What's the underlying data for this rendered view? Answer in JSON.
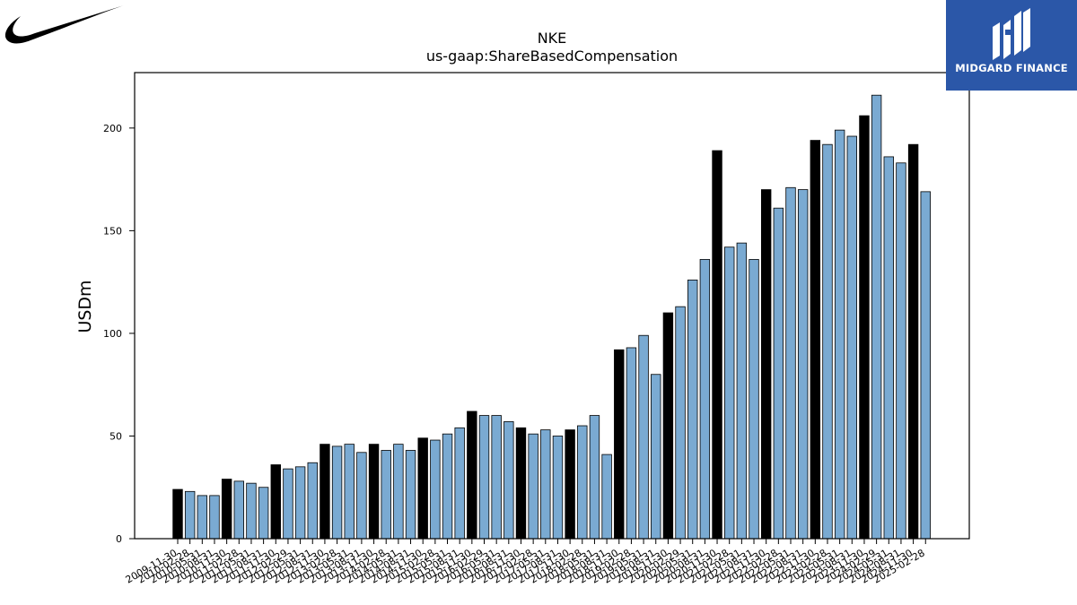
{
  "branding": {
    "company_logo_icon": "nike-swoosh-icon",
    "publisher_logo_icon": "midgard-mark-icon",
    "publisher_name": "MIDGARD FINANCE",
    "publisher_color": "#2b57a8"
  },
  "chart_data": {
    "type": "bar",
    "title": "NKE",
    "subtitle": "us-gaap:ShareBasedCompensation",
    "xlabel": "",
    "ylabel": "USDm",
    "ylim": [
      0,
      227
    ],
    "yticks": [
      0,
      50,
      100,
      150,
      200
    ],
    "grid": false,
    "colors": {
      "annual": "#000000",
      "quarterly": "#7aaad2",
      "edge": "#000000"
    },
    "categories": [
      "2009-11-30",
      "2010-02-28",
      "2010-05-31",
      "2010-08-31",
      "2010-11-30",
      "2011-02-28",
      "2011-05-31",
      "2011-08-31",
      "2011-11-30",
      "2012-02-29",
      "2012-05-31",
      "2012-08-31",
      "2012-11-30",
      "2013-02-28",
      "2013-05-31",
      "2013-08-31",
      "2013-11-30",
      "2014-02-28",
      "2014-05-31",
      "2014-08-31",
      "2014-11-30",
      "2015-02-28",
      "2015-05-31",
      "2015-08-31",
      "2015-11-30",
      "2016-02-29",
      "2016-05-31",
      "2016-08-31",
      "2016-11-30",
      "2017-02-28",
      "2017-05-31",
      "2017-08-31",
      "2017-11-30",
      "2018-02-28",
      "2018-05-31",
      "2018-08-31",
      "2018-11-30",
      "2019-02-28",
      "2019-05-31",
      "2019-08-31",
      "2019-11-30",
      "2020-02-29",
      "2020-05-31",
      "2020-08-31",
      "2020-11-30",
      "2021-02-28",
      "2021-05-31",
      "2021-08-31",
      "2021-11-30",
      "2022-02-28",
      "2022-05-31",
      "2022-08-31",
      "2022-11-30",
      "2023-02-28",
      "2023-05-31",
      "2023-08-31",
      "2023-11-30",
      "2024-02-29",
      "2024-05-31",
      "2024-08-31",
      "2024-11-30",
      "2025-02-28"
    ],
    "values": [
      24,
      23,
      21,
      21,
      29,
      28,
      27,
      25,
      36,
      34,
      35,
      37,
      46,
      45,
      46,
      42,
      46,
      43,
      46,
      43,
      49,
      48,
      51,
      54,
      62,
      60,
      60,
      57,
      54,
      51,
      53,
      50,
      53,
      55,
      60,
      41,
      92,
      93,
      99,
      80,
      110,
      113,
      126,
      136,
      189,
      142,
      144,
      136,
      170,
      161,
      171,
      170,
      194,
      192,
      199,
      196,
      206,
      216,
      186,
      183,
      192,
      169
    ],
    "annual_flags": [
      1,
      0,
      0,
      0,
      1,
      0,
      0,
      0,
      1,
      0,
      0,
      0,
      1,
      0,
      0,
      0,
      1,
      0,
      0,
      0,
      1,
      0,
      0,
      0,
      1,
      0,
      0,
      0,
      1,
      0,
      0,
      0,
      1,
      0,
      0,
      0,
      1,
      0,
      0,
      0,
      1,
      0,
      0,
      0,
      1,
      0,
      0,
      0,
      1,
      0,
      0,
      0,
      1,
      0,
      0,
      0,
      1,
      0,
      0,
      0,
      1,
      0
    ]
  }
}
